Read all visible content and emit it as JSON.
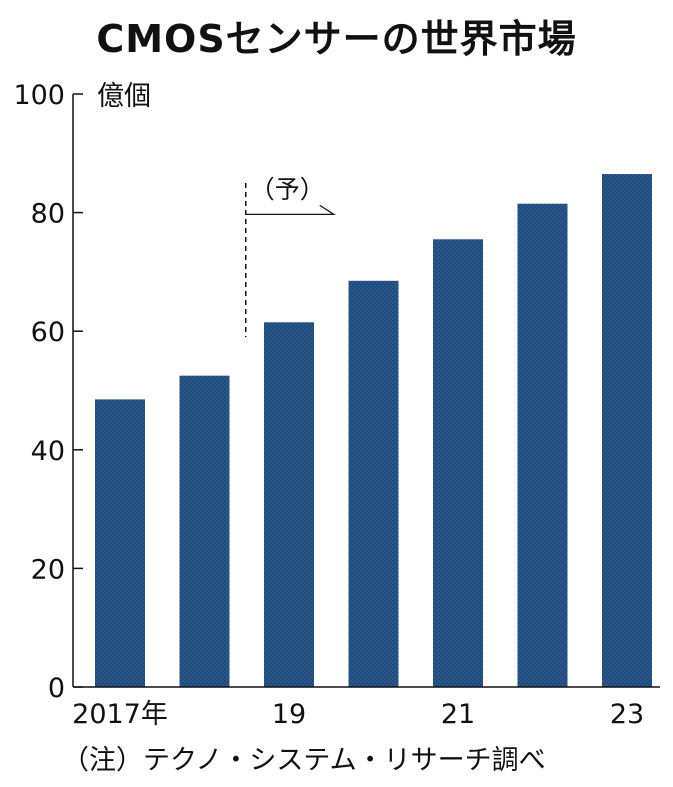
{
  "chart_data": {
    "type": "bar",
    "title": "CMOSセンサーの世界市場",
    "ylabel": "億個",
    "ylim": [
      0,
      100
    ],
    "yticks": [
      0,
      20,
      40,
      60,
      80,
      100
    ],
    "categories": [
      "2017",
      "2018",
      "2019",
      "2020",
      "2021",
      "2022",
      "2023"
    ],
    "x_tick_labels": [
      "2017年",
      "",
      "19",
      "",
      "21",
      "",
      "23"
    ],
    "values": [
      48.5,
      52.5,
      61.5,
      68.5,
      75.5,
      81.5,
      86.5
    ],
    "forecast_label": "（予）",
    "forecast_from": "2019",
    "bar_color": "#1f4a7c",
    "grid": false,
    "legend": "none"
  },
  "note": "（注）テクノ・システム・リサーチ調べ"
}
